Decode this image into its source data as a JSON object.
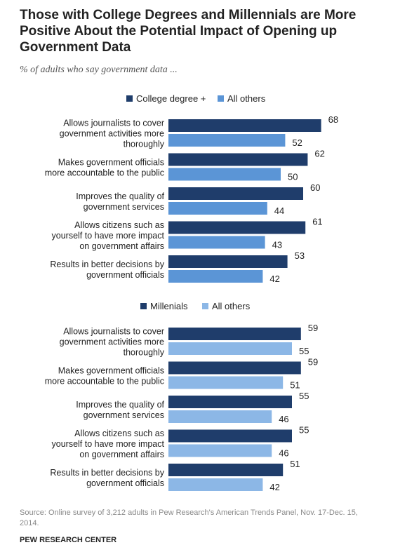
{
  "title": "Those with College Degrees and Millennials are More Positive About the Potential Impact of Opening up Government Data",
  "subtitle": "% of adults who say government data ...",
  "source": "Source: Online survey of 3,212 adults in Pew Research's American Trends Panel, Nov. 17-Dec. 15, 2014.",
  "org": "PEW RESEARCH CENTER",
  "colors": {
    "dark": "#1f3d6b",
    "mid": "#5b95d6",
    "light": "#8cb7e6"
  },
  "chart_data": [
    {
      "type": "bar",
      "orientation": "horizontal",
      "categories": [
        [
          "Allows journalists to cover",
          "government activities more",
          "thoroughly"
        ],
        [
          "Makes government officials",
          "more accountable to the public"
        ],
        [
          "Improves the quality of",
          "government services"
        ],
        [
          "Allows citizens such as",
          "yourself to have more impact",
          "on government affairs"
        ],
        [
          "Results in better decisions by",
          "government officials"
        ]
      ],
      "series": [
        {
          "name": "College degree +",
          "values": [
            68,
            62,
            60,
            61,
            53
          ],
          "color": "#1f3d6b"
        },
        {
          "name": "All others",
          "values": [
            52,
            50,
            44,
            43,
            42
          ],
          "color": "#5b95d6"
        }
      ]
    },
    {
      "type": "bar",
      "orientation": "horizontal",
      "categories": [
        [
          "Allows journalists to cover",
          "government activities more",
          "thoroughly"
        ],
        [
          "Makes government officials",
          "more accountable to the public"
        ],
        [
          "Improves the quality of",
          "government services"
        ],
        [
          "Allows citizens such as",
          "yourself to have more impact",
          "on government affairs"
        ],
        [
          "Results in better decisions by",
          "government officials"
        ]
      ],
      "series": [
        {
          "name": "Millenials",
          "values": [
            59,
            59,
            55,
            55,
            51
          ],
          "color": "#1f3d6b"
        },
        {
          "name": "All others",
          "values": [
            55,
            51,
            46,
            46,
            42
          ],
          "color": "#8cb7e6"
        }
      ]
    }
  ]
}
